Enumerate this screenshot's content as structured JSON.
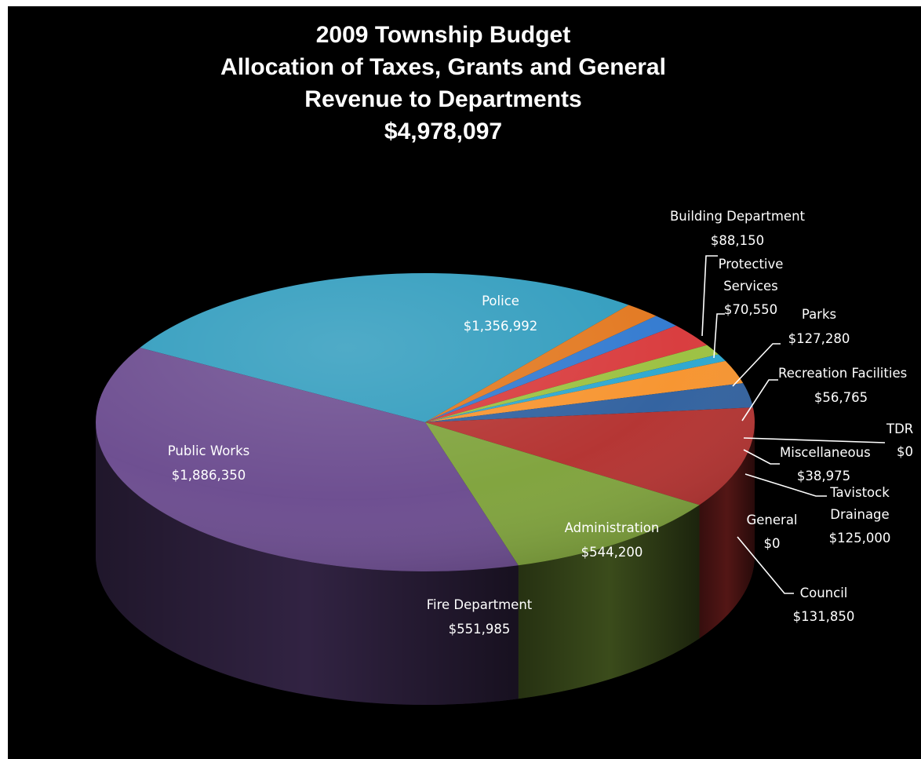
{
  "title_lines": [
    "2009 Township Budget",
    "Allocation of Taxes, Grants and General",
    "Revenue to Departments",
    "$4,978,097"
  ],
  "chart_data": {
    "type": "pie",
    "title": "2009 Township Budget Allocation of Taxes, Grants and General Revenue to Departments $4,978,097",
    "total": 4978097,
    "slices": [
      {
        "label": "Police",
        "value": 1356992,
        "display": "$1,356,992",
        "color": "#2e9bbd"
      },
      {
        "label": "Building Department",
        "value": 88150,
        "display": "$88,150",
        "color": "#e2761c"
      },
      {
        "label": "Protective Services",
        "value": 70550,
        "display": "$70,550",
        "color": "#2f78cf"
      },
      {
        "label": "Parks",
        "value": 127280,
        "display": "$127,280",
        "color": "#d8383a"
      },
      {
        "label": "Recreation Facilities",
        "value": 56765,
        "display": "$56,765",
        "color": "#9ac03e"
      },
      {
        "label": "TDR",
        "value": 0,
        "display": "$0",
        "color": "#3ab2d9"
      },
      {
        "label": "Miscellaneous",
        "value": 38975,
        "display": "$38,975",
        "color": "#2aa6cf"
      },
      {
        "label": "Tavistock Drainage",
        "value": 125000,
        "display": "$125,000",
        "color": "#f7932c"
      },
      {
        "label": "General",
        "value": 0,
        "display": "$0",
        "color": "#2d62a3"
      },
      {
        "label": "Council",
        "value": 131850,
        "display": "$131,850",
        "color": "#2e5f9e"
      },
      {
        "label": "Administration",
        "value": 544200,
        "display": "$544,200",
        "color": "#b3302e"
      },
      {
        "label": "Fire Department",
        "value": 551985,
        "display": "$551,985",
        "color": "#7ea23a"
      },
      {
        "label": "Public Works",
        "value": 1886350,
        "display": "$1,886,350",
        "color": "#6a4a8e"
      }
    ],
    "style": "3d-pie",
    "legend": "none"
  },
  "labels": {
    "police_name": "Police",
    "building_1": "Building Department",
    "protective_1": "Protective",
    "protective_2": "Services",
    "parks_name": "Parks",
    "recreation_1": "Recreation Facilities",
    "tdr_name": "TDR",
    "misc_name": "Miscellaneous",
    "tavistock_1": "Tavistock",
    "tavistock_2": "Drainage",
    "general_name": "General",
    "council_name": "Council",
    "admin_name": "Administration",
    "fire_name": "Fire Department",
    "public_works_name": "Public Works"
  }
}
